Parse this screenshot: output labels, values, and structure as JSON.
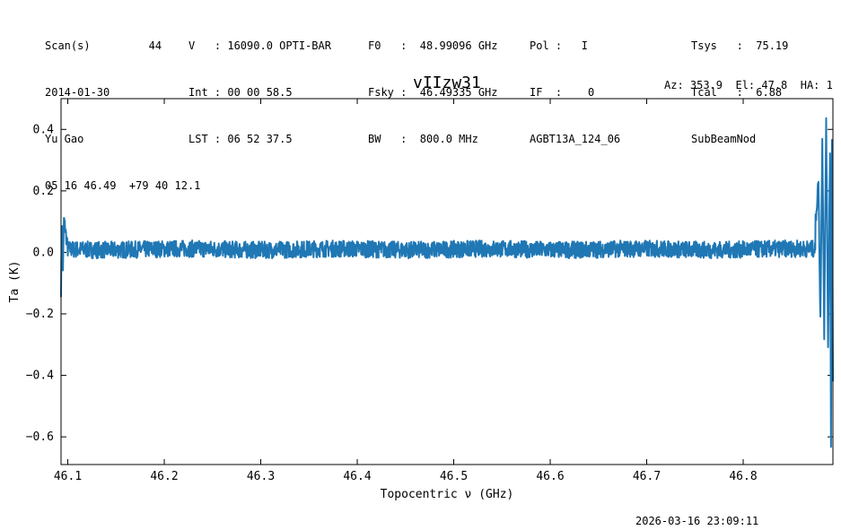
{
  "header": {
    "col1": [
      "Scan(s)         44",
      "2014-01-30",
      "Yu Gao",
      "05 16 46.49  +79 40 12.1"
    ],
    "col2": [
      "V   : 16090.0 OPTI-BAR",
      "Int : 00 00 58.5",
      "LST : 06 52 37.5"
    ],
    "col3": [
      "F0   :  48.99096 GHz",
      "Fsky :  46.49335 GHz",
      "BW   :  800.0 MHz"
    ],
    "col4": [
      "Pol :   I",
      "IF  :    0",
      "AGBT13A_124_06"
    ],
    "col5": [
      "Tsys   :  75.19",
      "Tcal   :  6.88",
      "SubBeamNod"
    ],
    "object": "vIIzw31",
    "azel": "Az: 353.9  El: 47.8  HA: 1"
  },
  "footer": {
    "timestamp": "2026-03-16 23:09:11"
  },
  "chart_data": {
    "type": "line",
    "title": "vIIzw31",
    "xlabel": "Topocentric ν (GHz)",
    "ylabel": "Ta (K)",
    "xlim": [
      46.093,
      46.893
    ],
    "ylim": [
      -0.69,
      0.5
    ],
    "xticks": [
      46.1,
      46.2,
      46.3,
      46.4,
      46.5,
      46.6,
      46.7,
      46.8
    ],
    "xtick_labels": [
      "46.1",
      "46.2",
      "46.3",
      "46.4",
      "46.5",
      "46.6",
      "46.7",
      "46.8"
    ],
    "yticks": [
      0.4,
      0.2,
      0.0,
      -0.2,
      -0.4,
      -0.6
    ],
    "ytick_labels": [
      "0.4",
      "0.2",
      "0.0",
      "−0.2",
      "−0.4",
      "−0.6"
    ],
    "grid": false,
    "series": [
      {
        "color": "#1f77b4",
        "x": [
          46.093,
          46.094,
          46.095,
          46.096,
          46.1,
          46.11,
          46.12,
          46.13,
          46.14,
          46.15,
          46.16,
          46.17,
          46.18,
          46.2,
          46.22,
          46.25,
          46.28,
          46.3,
          46.32,
          46.35,
          46.4,
          46.45,
          46.5,
          46.55,
          46.6,
          46.63,
          46.65,
          46.7,
          46.75,
          46.8,
          46.85,
          46.87,
          46.875,
          46.878,
          46.88,
          46.882,
          46.884,
          46.886,
          46.888,
          46.89,
          46.891,
          46.892,
          46.893
        ],
        "y": [
          -0.12,
          0.1,
          -0.05,
          0.11,
          0.01,
          -0.02,
          0.04,
          -0.03,
          0.05,
          -0.02,
          0.03,
          0.0,
          0.05,
          -0.02,
          0.04,
          -0.01,
          0.06,
          0.0,
          0.03,
          -0.02,
          0.02,
          0.03,
          -0.04,
          0.06,
          -0.03,
          0.08,
          -0.05,
          0.04,
          -0.02,
          0.03,
          0.05,
          0.04,
          0.1,
          0.23,
          -0.22,
          0.38,
          -0.26,
          0.44,
          -0.3,
          0.34,
          -0.64,
          0.36,
          -0.42
        ]
      }
    ]
  }
}
